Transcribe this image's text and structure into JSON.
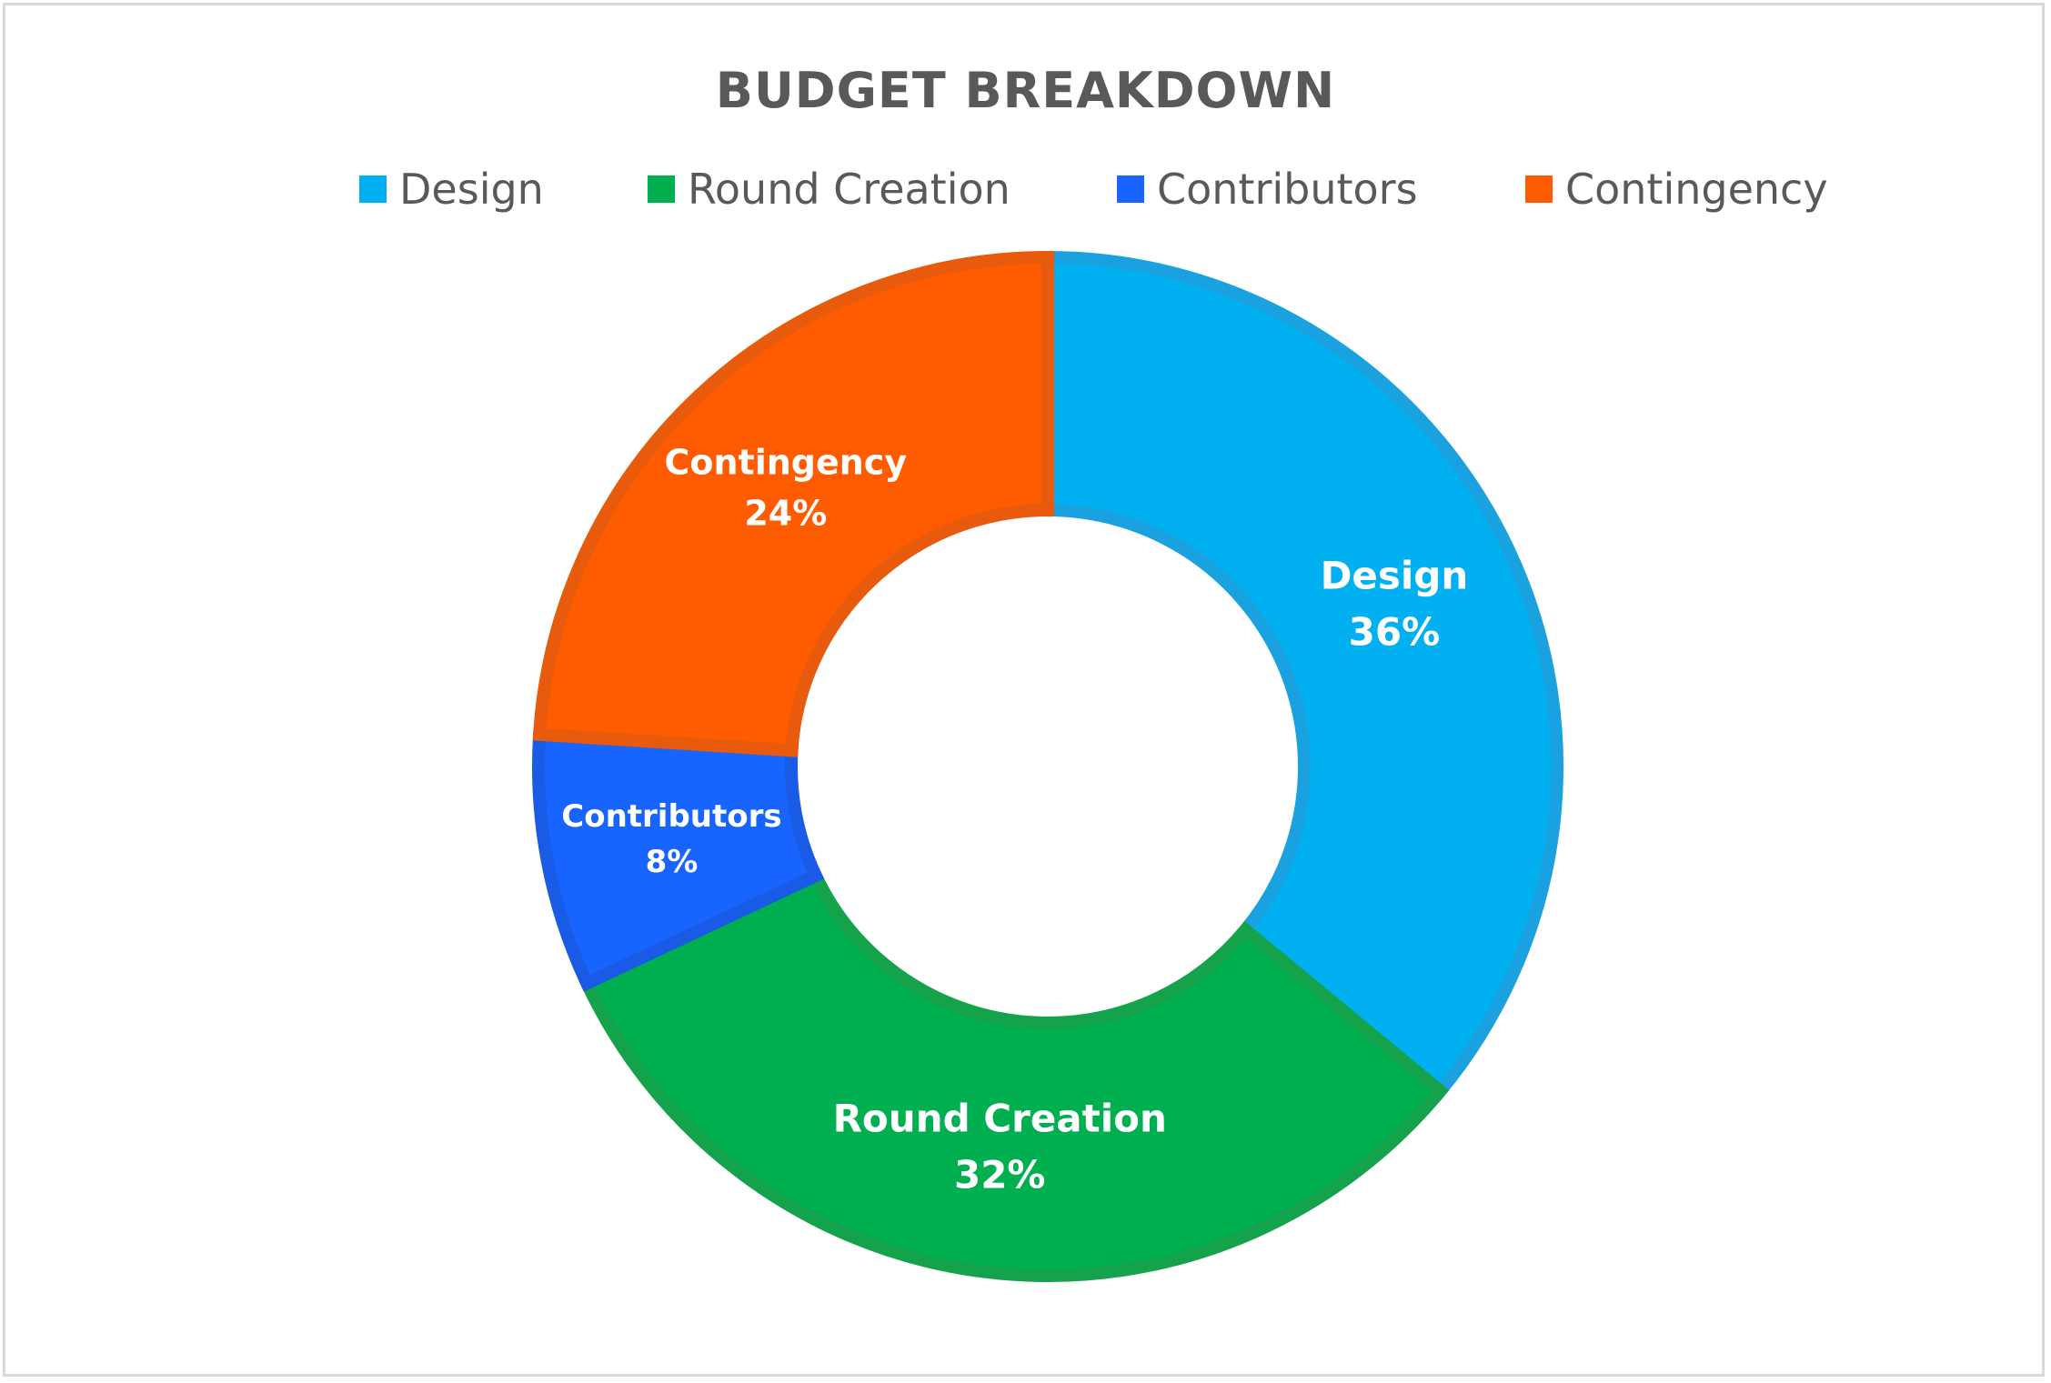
{
  "chart_data": {
    "type": "pie",
    "variant": "donut",
    "title": "BUDGET BREAKDOWN",
    "legend_position": "top",
    "slices": [
      {
        "name": "Design",
        "value": 36,
        "label": "36%",
        "color": "#00B0F0",
        "edge": "#1AA2E0"
      },
      {
        "name": "Round Creation",
        "value": 32,
        "label": "32%",
        "color": "#00B050",
        "edge": "#14A24A"
      },
      {
        "name": "Contributors",
        "value": 8,
        "label": "8%",
        "color": "#1764FF",
        "edge": "#1A5BE6"
      },
      {
        "name": "Contingency",
        "value": 24,
        "label": "24%",
        "color": "#FF5B00",
        "edge": "#E85A0C"
      }
    ]
  }
}
